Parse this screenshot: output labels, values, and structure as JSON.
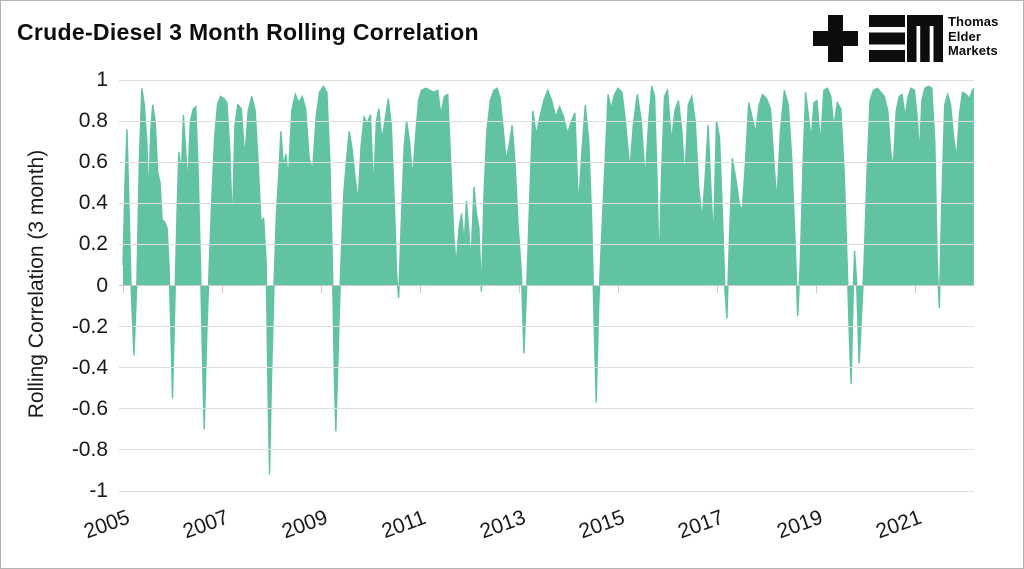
{
  "header": {
    "title": "Crude-Diesel 3 Month Rolling Correlation",
    "logo": {
      "mark_letters": "TEM",
      "lines": [
        "Thomas",
        "Elder",
        "Markets"
      ]
    }
  },
  "chart_data": {
    "type": "area",
    "title": "Crude-Diesel 3 Month Rolling Correlation",
    "xlabel": "",
    "ylabel": "Rolling Correlation (3 month)",
    "xlim": [
      2005,
      2022.2
    ],
    "ylim": [
      -1,
      1
    ],
    "grid": true,
    "legend": "none",
    "x_tick_rotation_deg": -20,
    "y_ticks": [
      1,
      0.8,
      0.6,
      0.4,
      0.2,
      0,
      -0.2,
      -0.4,
      -0.6,
      -0.8,
      -1
    ],
    "y_tick_labels": [
      "1",
      "0.8",
      "0.6",
      "0.4",
      "0.2",
      "0",
      "-0.2",
      "-0.4",
      "-0.6",
      "-0.8",
      "-1"
    ],
    "x_ticks": [
      2005,
      2007,
      2009,
      2011,
      2013,
      2015,
      2017,
      2019,
      2021
    ],
    "x_tick_labels": [
      "2005",
      "2007",
      "2009",
      "2011",
      "2013",
      "2015",
      "2017",
      "2019",
      "2021"
    ],
    "series": [
      {
        "name": "Crude-Diesel 3-month rolling correlation",
        "color": "#62c3a0",
        "points": [
          [
            2005.0,
            0.1
          ],
          [
            2005.04,
            0.5
          ],
          [
            2005.08,
            0.76
          ],
          [
            2005.12,
            0.4
          ],
          [
            2005.16,
            0.02
          ],
          [
            2005.22,
            -0.34
          ],
          [
            2005.28,
            0.02
          ],
          [
            2005.33,
            0.6
          ],
          [
            2005.38,
            0.96
          ],
          [
            2005.43,
            0.88
          ],
          [
            2005.48,
            0.7
          ],
          [
            2005.52,
            0.42
          ],
          [
            2005.56,
            0.75
          ],
          [
            2005.6,
            0.88
          ],
          [
            2005.65,
            0.8
          ],
          [
            2005.7,
            0.55
          ],
          [
            2005.75,
            0.5
          ],
          [
            2005.79,
            0.32
          ],
          [
            2005.84,
            0.31
          ],
          [
            2005.89,
            0.28
          ],
          [
            2005.93,
            0.1
          ],
          [
            2005.97,
            -0.25
          ],
          [
            2006.0,
            -0.55
          ],
          [
            2006.04,
            -0.15
          ],
          [
            2006.09,
            0.35
          ],
          [
            2006.13,
            0.65
          ],
          [
            2006.18,
            0.55
          ],
          [
            2006.22,
            0.83
          ],
          [
            2006.26,
            0.68
          ],
          [
            2006.31,
            0.49
          ],
          [
            2006.36,
            0.8
          ],
          [
            2006.42,
            0.86
          ],
          [
            2006.47,
            0.87
          ],
          [
            2006.52,
            0.55
          ],
          [
            2006.57,
            0.05
          ],
          [
            2006.61,
            -0.4
          ],
          [
            2006.64,
            -0.7
          ],
          [
            2006.69,
            -0.25
          ],
          [
            2006.74,
            0.08
          ],
          [
            2006.79,
            0.4
          ],
          [
            2006.85,
            0.72
          ],
          [
            2006.91,
            0.88
          ],
          [
            2006.97,
            0.92
          ],
          [
            2007.04,
            0.91
          ],
          [
            2007.1,
            0.89
          ],
          [
            2007.16,
            0.65
          ],
          [
            2007.21,
            0.28
          ],
          [
            2007.26,
            0.78
          ],
          [
            2007.32,
            0.88
          ],
          [
            2007.39,
            0.86
          ],
          [
            2007.46,
            0.62
          ],
          [
            2007.53,
            0.85
          ],
          [
            2007.6,
            0.92
          ],
          [
            2007.67,
            0.85
          ],
          [
            2007.73,
            0.6
          ],
          [
            2007.79,
            0.3
          ],
          [
            2007.84,
            0.33
          ],
          [
            2007.89,
            0.12
          ],
          [
            2007.93,
            -0.5
          ],
          [
            2007.96,
            -0.92
          ],
          [
            2008.0,
            -0.45
          ],
          [
            2008.05,
            0.0
          ],
          [
            2008.1,
            0.35
          ],
          [
            2008.15,
            0.55
          ],
          [
            2008.19,
            0.75
          ],
          [
            2008.24,
            0.58
          ],
          [
            2008.29,
            0.64
          ],
          [
            2008.34,
            0.52
          ],
          [
            2008.41,
            0.85
          ],
          [
            2008.48,
            0.93
          ],
          [
            2008.55,
            0.89
          ],
          [
            2008.62,
            0.92
          ],
          [
            2008.69,
            0.86
          ],
          [
            2008.76,
            0.62
          ],
          [
            2008.83,
            0.56
          ],
          [
            2008.9,
            0.82
          ],
          [
            2008.97,
            0.94
          ],
          [
            2009.05,
            0.97
          ],
          [
            2009.12,
            0.94
          ],
          [
            2009.18,
            0.6
          ],
          [
            2009.23,
            0.1
          ],
          [
            2009.27,
            -0.45
          ],
          [
            2009.3,
            -0.71
          ],
          [
            2009.35,
            -0.3
          ],
          [
            2009.4,
            0.1
          ],
          [
            2009.46,
            0.45
          ],
          [
            2009.52,
            0.62
          ],
          [
            2009.57,
            0.75
          ],
          [
            2009.63,
            0.66
          ],
          [
            2009.69,
            0.52
          ],
          [
            2009.75,
            0.41
          ],
          [
            2009.81,
            0.68
          ],
          [
            2009.87,
            0.82
          ],
          [
            2009.93,
            0.79
          ],
          [
            2010.0,
            0.83
          ],
          [
            2010.06,
            0.46
          ],
          [
            2010.12,
            0.8
          ],
          [
            2010.17,
            0.86
          ],
          [
            2010.23,
            0.71
          ],
          [
            2010.29,
            0.8
          ],
          [
            2010.36,
            0.91
          ],
          [
            2010.42,
            0.78
          ],
          [
            2010.48,
            0.4
          ],
          [
            2010.53,
            0.05
          ],
          [
            2010.57,
            -0.06
          ],
          [
            2010.62,
            0.3
          ],
          [
            2010.68,
            0.68
          ],
          [
            2010.73,
            0.8
          ],
          [
            2010.79,
            0.7
          ],
          [
            2010.85,
            0.52
          ],
          [
            2010.91,
            0.72
          ],
          [
            2010.97,
            0.9
          ],
          [
            2011.03,
            0.95
          ],
          [
            2011.12,
            0.96
          ],
          [
            2011.2,
            0.95
          ],
          [
            2011.28,
            0.94
          ],
          [
            2011.36,
            0.95
          ],
          [
            2011.42,
            0.83
          ],
          [
            2011.49,
            0.92
          ],
          [
            2011.56,
            0.93
          ],
          [
            2011.62,
            0.6
          ],
          [
            2011.68,
            0.25
          ],
          [
            2011.73,
            0.1
          ],
          [
            2011.79,
            0.28
          ],
          [
            2011.84,
            0.35
          ],
          [
            2011.89,
            0.2
          ],
          [
            2011.94,
            0.41
          ],
          [
            2011.99,
            0.25
          ],
          [
            2012.03,
            0.12
          ],
          [
            2012.09,
            0.48
          ],
          [
            2012.14,
            0.35
          ],
          [
            2012.19,
            0.28
          ],
          [
            2012.24,
            -0.03
          ],
          [
            2012.29,
            0.43
          ],
          [
            2012.35,
            0.75
          ],
          [
            2012.42,
            0.9
          ],
          [
            2012.49,
            0.95
          ],
          [
            2012.56,
            0.96
          ],
          [
            2012.62,
            0.91
          ],
          [
            2012.68,
            0.76
          ],
          [
            2012.74,
            0.61
          ],
          [
            2012.8,
            0.68
          ],
          [
            2012.86,
            0.78
          ],
          [
            2012.92,
            0.6
          ],
          [
            2012.98,
            0.3
          ],
          [
            2013.05,
            0.05
          ],
          [
            2013.1,
            -0.33
          ],
          [
            2013.16,
            0.02
          ],
          [
            2013.22,
            0.45
          ],
          [
            2013.28,
            0.85
          ],
          [
            2013.35,
            0.73
          ],
          [
            2013.42,
            0.82
          ],
          [
            2013.5,
            0.9
          ],
          [
            2013.58,
            0.95
          ],
          [
            2013.66,
            0.9
          ],
          [
            2013.74,
            0.82
          ],
          [
            2013.82,
            0.87
          ],
          [
            2013.9,
            0.82
          ],
          [
            2013.98,
            0.74
          ],
          [
            2014.06,
            0.8
          ],
          [
            2014.13,
            0.84
          ],
          [
            2014.2,
            0.38
          ],
          [
            2014.27,
            0.65
          ],
          [
            2014.34,
            0.88
          ],
          [
            2014.41,
            0.7
          ],
          [
            2014.47,
            0.3
          ],
          [
            2014.52,
            -0.2
          ],
          [
            2014.56,
            -0.57
          ],
          [
            2014.61,
            -0.1
          ],
          [
            2014.67,
            0.25
          ],
          [
            2014.73,
            0.55
          ],
          [
            2014.8,
            0.93
          ],
          [
            2014.86,
            0.86
          ],
          [
            2014.93,
            0.93
          ],
          [
            2015.0,
            0.96
          ],
          [
            2015.08,
            0.94
          ],
          [
            2015.15,
            0.8
          ],
          [
            2015.24,
            0.56
          ],
          [
            2015.31,
            0.78
          ],
          [
            2015.39,
            0.93
          ],
          [
            2015.47,
            0.8
          ],
          [
            2015.55,
            0.52
          ],
          [
            2015.62,
            0.8
          ],
          [
            2015.68,
            0.97
          ],
          [
            2015.74,
            0.92
          ],
          [
            2015.79,
            0.5
          ],
          [
            2015.83,
            0.07
          ],
          [
            2015.88,
            0.55
          ],
          [
            2015.94,
            0.92
          ],
          [
            2016.0,
            0.95
          ],
          [
            2016.08,
            0.7
          ],
          [
            2016.15,
            0.85
          ],
          [
            2016.22,
            0.9
          ],
          [
            2016.29,
            0.75
          ],
          [
            2016.35,
            0.52
          ],
          [
            2016.42,
            0.88
          ],
          [
            2016.49,
            0.92
          ],
          [
            2016.56,
            0.8
          ],
          [
            2016.63,
            0.48
          ],
          [
            2016.7,
            0.32
          ],
          [
            2016.76,
            0.52
          ],
          [
            2016.82,
            0.78
          ],
          [
            2016.88,
            0.45
          ],
          [
            2016.93,
            0.22
          ],
          [
            2016.99,
            0.8
          ],
          [
            2017.05,
            0.72
          ],
          [
            2017.11,
            0.35
          ],
          [
            2017.16,
            -0.02
          ],
          [
            2017.2,
            -0.16
          ],
          [
            2017.25,
            0.22
          ],
          [
            2017.31,
            0.62
          ],
          [
            2017.38,
            0.52
          ],
          [
            2017.45,
            0.4
          ],
          [
            2017.51,
            0.36
          ],
          [
            2017.57,
            0.58
          ],
          [
            2017.64,
            0.89
          ],
          [
            2017.71,
            0.82
          ],
          [
            2017.78,
            0.74
          ],
          [
            2017.85,
            0.88
          ],
          [
            2017.92,
            0.93
          ],
          [
            2018.0,
            0.91
          ],
          [
            2018.08,
            0.86
          ],
          [
            2018.15,
            0.6
          ],
          [
            2018.21,
            0.41
          ],
          [
            2018.28,
            0.75
          ],
          [
            2018.36,
            0.95
          ],
          [
            2018.44,
            0.88
          ],
          [
            2018.51,
            0.62
          ],
          [
            2018.58,
            0.2
          ],
          [
            2018.63,
            -0.15
          ],
          [
            2018.68,
            0.1
          ],
          [
            2018.74,
            0.6
          ],
          [
            2018.79,
            0.94
          ],
          [
            2018.85,
            0.82
          ],
          [
            2018.9,
            0.71
          ],
          [
            2018.96,
            0.89
          ],
          [
            2019.02,
            0.9
          ],
          [
            2019.09,
            0.69
          ],
          [
            2019.16,
            0.95
          ],
          [
            2019.23,
            0.96
          ],
          [
            2019.3,
            0.92
          ],
          [
            2019.36,
            0.77
          ],
          [
            2019.43,
            0.89
          ],
          [
            2019.5,
            0.86
          ],
          [
            2019.57,
            0.55
          ],
          [
            2019.63,
            0.1
          ],
          [
            2019.68,
            -0.3
          ],
          [
            2019.71,
            -0.48
          ],
          [
            2019.75,
            -0.05
          ],
          [
            2019.78,
            0.17
          ],
          [
            2019.82,
            0.02
          ],
          [
            2019.87,
            -0.38
          ],
          [
            2019.92,
            -0.15
          ],
          [
            2019.97,
            0.1
          ],
          [
            2020.03,
            0.55
          ],
          [
            2020.09,
            0.9
          ],
          [
            2020.16,
            0.95
          ],
          [
            2020.24,
            0.96
          ],
          [
            2020.31,
            0.94
          ],
          [
            2020.38,
            0.92
          ],
          [
            2020.45,
            0.85
          ],
          [
            2020.51,
            0.65
          ],
          [
            2020.56,
            0.57
          ],
          [
            2020.62,
            0.85
          ],
          [
            2020.68,
            0.92
          ],
          [
            2020.74,
            0.93
          ],
          [
            2020.8,
            0.82
          ],
          [
            2020.86,
            0.92
          ],
          [
            2020.92,
            0.96
          ],
          [
            2020.99,
            0.95
          ],
          [
            2021.05,
            0.8
          ],
          [
            2021.09,
            0.64
          ],
          [
            2021.14,
            0.9
          ],
          [
            2021.2,
            0.96
          ],
          [
            2021.27,
            0.97
          ],
          [
            2021.34,
            0.96
          ],
          [
            2021.4,
            0.7
          ],
          [
            2021.45,
            0.1
          ],
          [
            2021.49,
            -0.11
          ],
          [
            2021.54,
            0.4
          ],
          [
            2021.6,
            0.88
          ],
          [
            2021.66,
            0.93
          ],
          [
            2021.72,
            0.88
          ],
          [
            2021.78,
            0.72
          ],
          [
            2021.84,
            0.62
          ],
          [
            2021.9,
            0.84
          ],
          [
            2021.96,
            0.94
          ],
          [
            2022.03,
            0.93
          ],
          [
            2022.1,
            0.91
          ],
          [
            2022.16,
            0.95
          ],
          [
            2022.19,
            0.96
          ]
        ]
      }
    ]
  },
  "colors": {
    "area_fill": "#62c3a0",
    "gridline": "#dedede",
    "zero_line": "#c9c9c9",
    "text": "#1a1a1a",
    "title_text": "#0d0d0d",
    "background": "#ffffff",
    "border": "#b3b3b3",
    "logo_ink": "#0d0d0d"
  }
}
